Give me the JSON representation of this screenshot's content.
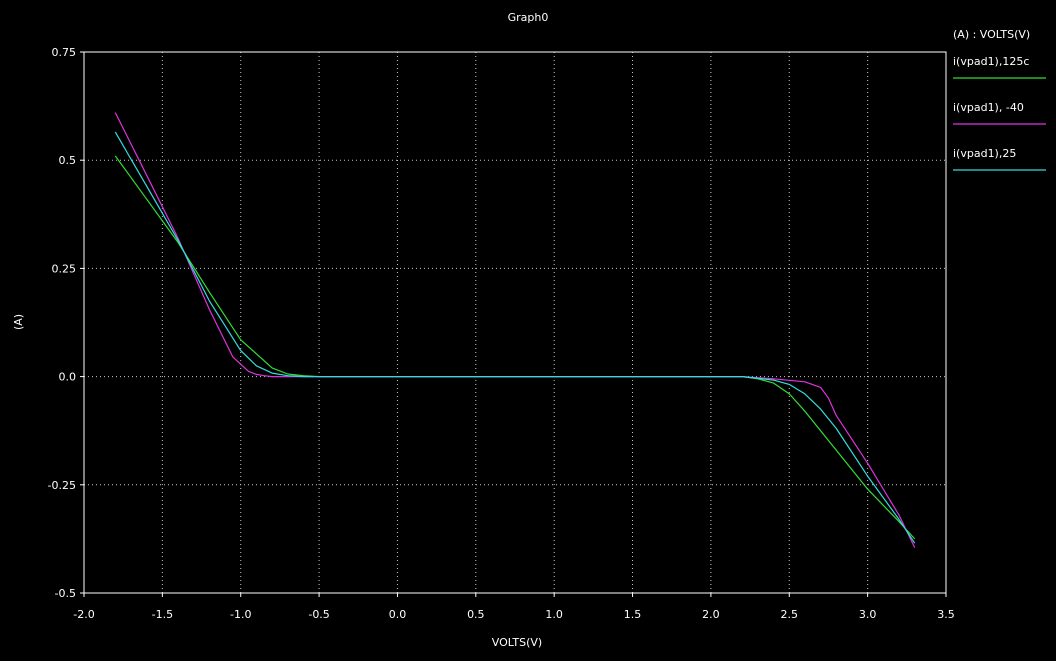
{
  "chart_data": {
    "type": "line",
    "title": "Graph0",
    "xlabel": "VOLTS(V)",
    "ylabel": "(A)",
    "legend_title": "(A) : VOLTS(V)",
    "xlim": [
      -2.0,
      3.5
    ],
    "ylim": [
      -0.5,
      0.75
    ],
    "x_ticks": [
      "-2.0",
      "-1.5",
      "-1.0",
      "-0.5",
      "0.0",
      "0.5",
      "1.0",
      "1.5",
      "2.0",
      "2.5",
      "3.0",
      "3.5"
    ],
    "x_tick_values": [
      -2.0,
      -1.5,
      -1.0,
      -0.5,
      0.0,
      0.5,
      1.0,
      1.5,
      2.0,
      2.5,
      3.0,
      3.5
    ],
    "y_ticks": [
      "0.75",
      "0.5",
      "0.25",
      "0.0",
      "-0.25",
      "-0.5"
    ],
    "y_tick_values": [
      0.75,
      0.5,
      0.25,
      0.0,
      -0.25,
      -0.5
    ],
    "grid": true,
    "legend_position": "right",
    "series": [
      {
        "name": "i(vpad1),125c",
        "color": "#33dd33",
        "x": [
          -1.8,
          -1.6,
          -1.4,
          -1.2,
          -1.0,
          -0.8,
          -0.7,
          -0.6,
          -0.5,
          -0.4,
          0.0,
          1.0,
          2.0,
          2.2,
          2.3,
          2.4,
          2.5,
          2.6,
          2.8,
          3.0,
          3.2,
          3.3
        ],
        "y": [
          0.51,
          0.41,
          0.31,
          0.195,
          0.085,
          0.02,
          0.006,
          0.002,
          0.0,
          0.0,
          0.0,
          0.0,
          0.0,
          0.0,
          -0.005,
          -0.015,
          -0.04,
          -0.08,
          -0.17,
          -0.26,
          -0.335,
          -0.375
        ]
      },
      {
        "name": "i(vpad1), -40",
        "color": "#dd33dd",
        "x": [
          -1.8,
          -1.6,
          -1.4,
          -1.2,
          -1.05,
          -0.95,
          -0.9,
          -0.85,
          -0.8,
          -0.6,
          0.0,
          1.0,
          2.0,
          2.2,
          2.4,
          2.6,
          2.7,
          2.75,
          2.8,
          3.0,
          3.2,
          3.3
        ],
        "y": [
          0.61,
          0.465,
          0.32,
          0.155,
          0.045,
          0.012,
          0.005,
          0.002,
          0.0,
          0.0,
          0.0,
          0.0,
          0.0,
          0.0,
          -0.005,
          -0.012,
          -0.025,
          -0.05,
          -0.09,
          -0.2,
          -0.32,
          -0.395
        ]
      },
      {
        "name": "i(vpad1),25",
        "color": "#33dddd",
        "x": [
          -1.8,
          -1.6,
          -1.4,
          -1.2,
          -1.0,
          -0.9,
          -0.8,
          -0.7,
          -0.6,
          -0.5,
          0.0,
          1.0,
          2.0,
          2.2,
          2.4,
          2.5,
          2.6,
          2.7,
          2.8,
          3.0,
          3.2,
          3.3
        ],
        "y": [
          0.565,
          0.44,
          0.315,
          0.175,
          0.06,
          0.025,
          0.008,
          0.002,
          0.0,
          0.0,
          0.0,
          0.0,
          0.0,
          0.0,
          -0.008,
          -0.018,
          -0.04,
          -0.075,
          -0.12,
          -0.23,
          -0.33,
          -0.385
        ]
      }
    ]
  },
  "colors": {
    "background": "#000000",
    "axis": "#ffffff",
    "grid": "#c8c8c8",
    "text": "#ffffff"
  }
}
